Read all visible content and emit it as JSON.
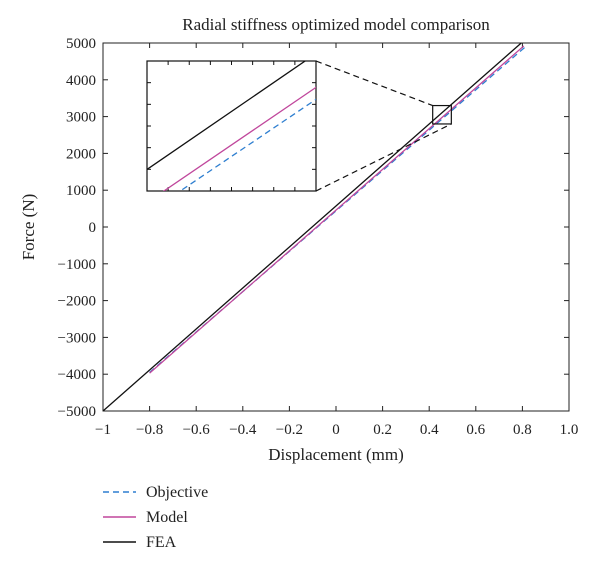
{
  "chart_data": {
    "type": "line",
    "title": "Radial stiffness optimized model comparison",
    "xlabel": "Displacement (mm)",
    "ylabel": "Force (N)",
    "xlim": [
      -1,
      1
    ],
    "ylim": [
      -5000,
      5000
    ],
    "xticks": [
      -1,
      -0.8,
      -0.6,
      -0.4,
      -0.2,
      0,
      0.2,
      0.4,
      0.6,
      0.8,
      1.0
    ],
    "xtick_labels": [
      "−1",
      "−0.8",
      "−0.6",
      "−0.4",
      "−0.2",
      "0",
      "0.2",
      "0.4",
      "0.6",
      "0.8",
      "1.0"
    ],
    "yticks": [
      -5000,
      -4000,
      -3000,
      -2000,
      -1000,
      0,
      1000,
      2000,
      3000,
      4000,
      5000
    ],
    "ytick_labels": [
      "−5000",
      "−4000",
      "−3000",
      "−2000",
      "−1000",
      "0",
      "1000",
      "2000",
      "3000",
      "4000",
      "5000"
    ],
    "grid": false,
    "legend_position": "below",
    "series": [
      {
        "name": "Objective",
        "color": "#2f7fd0",
        "dash": "6,4",
        "x": [
          -0.8,
          0.81
        ],
        "y": [
          -3950,
          4880
        ]
      },
      {
        "name": "Model",
        "color": "#c0479c",
        "dash": "",
        "x": [
          -0.8,
          0.806
        ],
        "y": [
          -3970,
          4920
        ]
      },
      {
        "name": "FEA",
        "color": "#111111",
        "dash": "",
        "x": [
          -1,
          0.795
        ],
        "y": [
          -5000,
          5000
        ]
      }
    ],
    "inset": {
      "source_rect": {
        "x": [
          0.415,
          0.495
        ],
        "y": [
          2800,
          3300
        ]
      }
    }
  }
}
